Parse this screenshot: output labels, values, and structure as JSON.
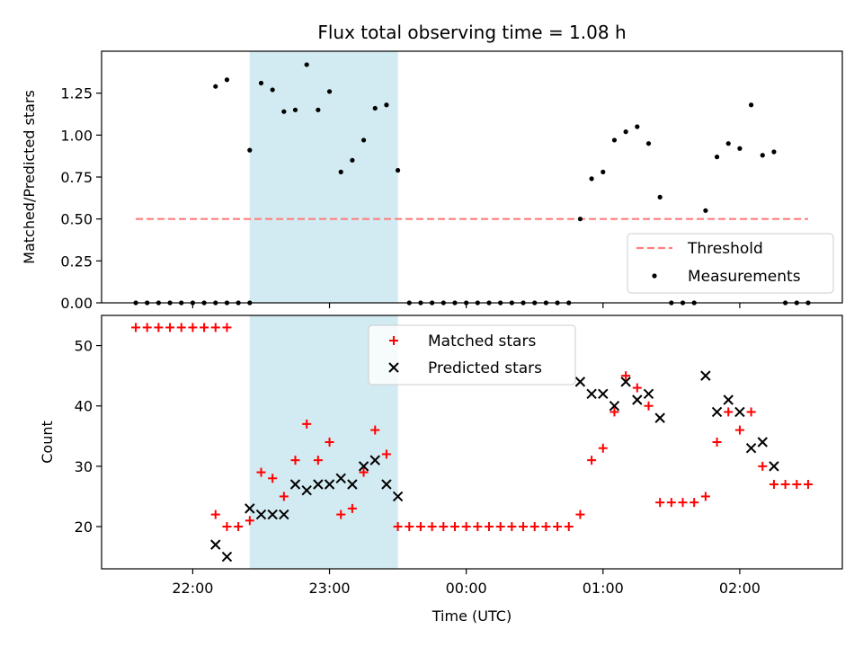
{
  "chart_data": [
    {
      "type": "scatter",
      "title": "Flux total observing time = 1.08 h",
      "xlabel": "",
      "ylabel": "Matched/Predicted stars",
      "ylim": [
        0,
        1.5
      ],
      "yticks": [
        0.0,
        0.25,
        0.5,
        0.75,
        1.0,
        1.25
      ],
      "ytick_labels": [
        "0.00",
        "0.25",
        "0.50",
        "0.75",
        "1.00",
        "1.25"
      ],
      "grid": false,
      "legend_position": "bottom-right",
      "highlight_span": {
        "x_start": "22:25",
        "x_end": "23:30",
        "color": "#add8e6"
      },
      "threshold": {
        "name": "Threshold",
        "value": 0.5,
        "x_start": "21:35",
        "x_end": "02:30",
        "color": "#ff7f7f"
      },
      "series": [
        {
          "name": "Measurements",
          "marker": "dot",
          "color": "#000000",
          "points": [
            [
              "21:35",
              0
            ],
            [
              "21:40",
              0
            ],
            [
              "21:45",
              0
            ],
            [
              "21:50",
              0
            ],
            [
              "21:55",
              0
            ],
            [
              "22:00",
              0
            ],
            [
              "22:05",
              0
            ],
            [
              "22:10",
              0
            ],
            [
              "22:15",
              0
            ],
            [
              "22:20",
              0
            ],
            [
              "22:25",
              0
            ],
            [
              "22:10",
              1.29
            ],
            [
              "22:15",
              1.33
            ],
            [
              "22:25",
              0.91
            ],
            [
              "22:30",
              1.31
            ],
            [
              "22:35",
              1.27
            ],
            [
              "22:40",
              1.14
            ],
            [
              "22:45",
              1.15
            ],
            [
              "22:50",
              1.42
            ],
            [
              "22:55",
              1.15
            ],
            [
              "23:00",
              1.26
            ],
            [
              "23:05",
              0.78
            ],
            [
              "23:10",
              0.85
            ],
            [
              "23:15",
              0.97
            ],
            [
              "23:20",
              1.16
            ],
            [
              "23:25",
              1.18
            ],
            [
              "23:30",
              0.79
            ],
            [
              "23:35",
              0
            ],
            [
              "23:40",
              0
            ],
            [
              "23:45",
              0
            ],
            [
              "23:50",
              0
            ],
            [
              "23:55",
              0
            ],
            [
              "00:00",
              0
            ],
            [
              "00:05",
              0
            ],
            [
              "00:10",
              0
            ],
            [
              "00:15",
              0
            ],
            [
              "00:20",
              0
            ],
            [
              "00:25",
              0
            ],
            [
              "00:30",
              0
            ],
            [
              "00:35",
              0
            ],
            [
              "00:40",
              0
            ],
            [
              "00:45",
              0
            ],
            [
              "00:50",
              0.5
            ],
            [
              "00:55",
              0.74
            ],
            [
              "01:00",
              0.78
            ],
            [
              "01:05",
              0.97
            ],
            [
              "01:10",
              1.02
            ],
            [
              "01:15",
              1.05
            ],
            [
              "01:20",
              0.95
            ],
            [
              "01:25",
              0.63
            ],
            [
              "01:30",
              0
            ],
            [
              "01:35",
              0
            ],
            [
              "01:40",
              0
            ],
            [
              "01:45",
              0.55
            ],
            [
              "01:50",
              0.87
            ],
            [
              "01:55",
              0.95
            ],
            [
              "02:00",
              0.92
            ],
            [
              "02:05",
              1.18
            ],
            [
              "02:10",
              0.88
            ],
            [
              "02:15",
              0.9
            ],
            [
              "02:20",
              0
            ],
            [
              "02:25",
              0
            ],
            [
              "02:30",
              0
            ]
          ]
        }
      ]
    },
    {
      "type": "scatter",
      "title": "",
      "xlabel": "Time (UTC)",
      "ylabel": "Count",
      "ylim": [
        13,
        55
      ],
      "yticks": [
        20,
        30,
        40,
        50
      ],
      "ytick_labels": [
        "20",
        "30",
        "40",
        "50"
      ],
      "x_ticks": [
        "22:00",
        "23:00",
        "00:00",
        "01:00",
        "02:00"
      ],
      "xlim": [
        "21:20",
        "02:45"
      ],
      "grid": false,
      "legend_position": "top-center",
      "highlight_span": {
        "x_start": "22:25",
        "x_end": "23:30",
        "color": "#add8e6"
      },
      "series": [
        {
          "name": "Matched stars",
          "marker": "plus",
          "color": "#ff0000",
          "points": [
            [
              "21:35",
              53
            ],
            [
              "21:40",
              53
            ],
            [
              "21:45",
              53
            ],
            [
              "21:50",
              53
            ],
            [
              "21:55",
              53
            ],
            [
              "22:00",
              53
            ],
            [
              "22:05",
              53
            ],
            [
              "22:10",
              53
            ],
            [
              "22:15",
              53
            ],
            [
              "22:10",
              22
            ],
            [
              "22:15",
              20
            ],
            [
              "22:20",
              20
            ],
            [
              "22:25",
              21
            ],
            [
              "22:30",
              29
            ],
            [
              "22:35",
              28
            ],
            [
              "22:40",
              25
            ],
            [
              "22:45",
              31
            ],
            [
              "22:50",
              37
            ],
            [
              "22:55",
              31
            ],
            [
              "23:00",
              34
            ],
            [
              "23:05",
              22
            ],
            [
              "23:10",
              23
            ],
            [
              "23:15",
              29
            ],
            [
              "23:20",
              36
            ],
            [
              "23:25",
              32
            ],
            [
              "23:30",
              20
            ],
            [
              "23:35",
              20
            ],
            [
              "23:40",
              20
            ],
            [
              "23:45",
              20
            ],
            [
              "23:50",
              20
            ],
            [
              "23:55",
              20
            ],
            [
              "00:00",
              20
            ],
            [
              "00:05",
              20
            ],
            [
              "00:10",
              20
            ],
            [
              "00:15",
              20
            ],
            [
              "00:20",
              20
            ],
            [
              "00:25",
              20
            ],
            [
              "00:30",
              20
            ],
            [
              "00:35",
              20
            ],
            [
              "00:40",
              20
            ],
            [
              "00:45",
              20
            ],
            [
              "00:50",
              22
            ],
            [
              "00:55",
              31
            ],
            [
              "01:00",
              33
            ],
            [
              "01:05",
              39
            ],
            [
              "01:10",
              45
            ],
            [
              "01:15",
              43
            ],
            [
              "01:20",
              40
            ],
            [
              "01:25",
              24
            ],
            [
              "01:30",
              24
            ],
            [
              "01:35",
              24
            ],
            [
              "01:40",
              24
            ],
            [
              "01:45",
              25
            ],
            [
              "01:50",
              34
            ],
            [
              "01:55",
              39
            ],
            [
              "02:00",
              36
            ],
            [
              "02:05",
              39
            ],
            [
              "02:10",
              30
            ],
            [
              "02:15",
              27
            ],
            [
              "02:20",
              27
            ],
            [
              "02:25",
              27
            ],
            [
              "02:30",
              27
            ]
          ]
        },
        {
          "name": "Predicted stars",
          "marker": "x",
          "color": "#000000",
          "points": [
            [
              "22:10",
              17
            ],
            [
              "22:15",
              15
            ],
            [
              "22:25",
              23
            ],
            [
              "22:30",
              22
            ],
            [
              "22:35",
              22
            ],
            [
              "22:40",
              22
            ],
            [
              "22:45",
              27
            ],
            [
              "22:50",
              26
            ],
            [
              "22:55",
              27
            ],
            [
              "23:00",
              27
            ],
            [
              "23:05",
              28
            ],
            [
              "23:10",
              27
            ],
            [
              "23:15",
              30
            ],
            [
              "23:20",
              31
            ],
            [
              "23:25",
              27
            ],
            [
              "23:30",
              25
            ],
            [
              "00:50",
              44
            ],
            [
              "00:55",
              42
            ],
            [
              "01:00",
              42
            ],
            [
              "01:05",
              40
            ],
            [
              "01:10",
              44
            ],
            [
              "01:15",
              41
            ],
            [
              "01:20",
              42
            ],
            [
              "01:25",
              38
            ],
            [
              "01:45",
              45
            ],
            [
              "01:50",
              39
            ],
            [
              "01:55",
              41
            ],
            [
              "02:00",
              39
            ],
            [
              "02:05",
              33
            ],
            [
              "02:10",
              34
            ],
            [
              "02:15",
              30
            ]
          ]
        }
      ]
    }
  ]
}
